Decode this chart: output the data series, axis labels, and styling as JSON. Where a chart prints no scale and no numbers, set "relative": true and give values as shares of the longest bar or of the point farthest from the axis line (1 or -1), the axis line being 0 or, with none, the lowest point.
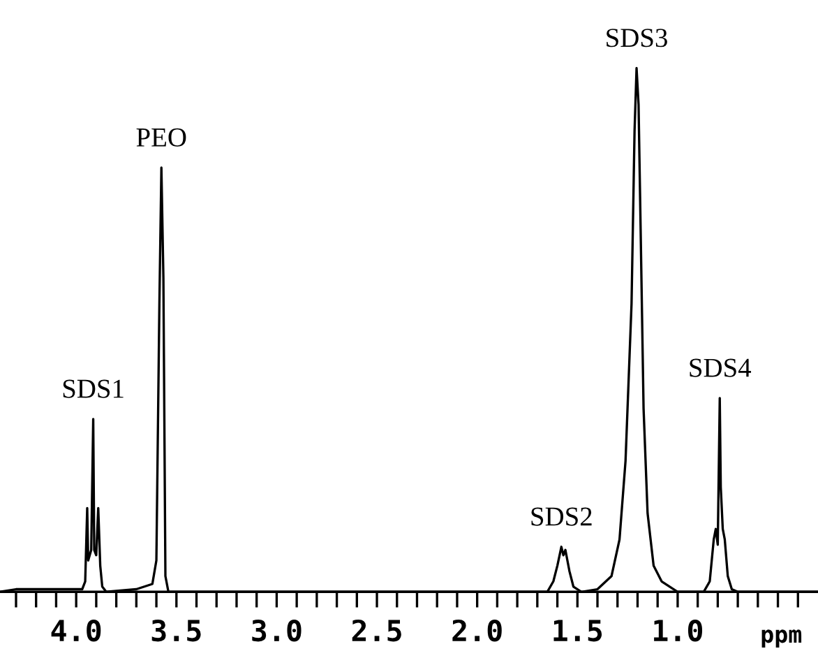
{
  "chart_data": {
    "type": "line",
    "relative": true,
    "xlabel": "ppm",
    "x": [
      4.38,
      4.3,
      3.97,
      3.955,
      3.945,
      3.94,
      3.925,
      3.915,
      3.91,
      3.9,
      3.89,
      3.88,
      3.87,
      3.85,
      3.7,
      3.62,
      3.6,
      3.585,
      3.575,
      3.565,
      3.555,
      3.54,
      2.0,
      1.65,
      1.62,
      1.6,
      1.58,
      1.57,
      1.56,
      1.54,
      1.52,
      1.48,
      1.4,
      1.33,
      1.29,
      1.26,
      1.23,
      1.215,
      1.205,
      1.195,
      1.185,
      1.17,
      1.15,
      1.12,
      1.08,
      1.0,
      0.87,
      0.84,
      0.82,
      0.81,
      0.8,
      0.79,
      0.785,
      0.775,
      0.765,
      0.75,
      0.73,
      0.7,
      0.3
    ],
    "series": [
      {
        "color": "#000000",
        "values": [
          0.0,
          0.005,
          0.005,
          0.02,
          0.16,
          0.06,
          0.08,
          0.33,
          0.08,
          0.07,
          0.16,
          0.05,
          0.01,
          0.0,
          0.005,
          0.015,
          0.06,
          0.55,
          0.81,
          0.6,
          0.03,
          0.0,
          0.0,
          0.0,
          0.02,
          0.05,
          0.086,
          0.07,
          0.08,
          0.04,
          0.01,
          0.0,
          0.005,
          0.03,
          0.1,
          0.25,
          0.55,
          0.88,
          1.0,
          0.93,
          0.7,
          0.35,
          0.15,
          0.05,
          0.02,
          0.0,
          0.0,
          0.02,
          0.1,
          0.12,
          0.09,
          0.37,
          0.2,
          0.12,
          0.1,
          0.03,
          0.005,
          0.0,
          0.0
        ]
      }
    ],
    "xlim": [
      4.38,
      0.3
    ],
    "xticks": [
      {
        "value": 4.3,
        "label": null
      },
      {
        "value": 4.2,
        "label": null
      },
      {
        "value": 4.1,
        "label": null
      },
      {
        "value": 4.0,
        "label": "4.0"
      },
      {
        "value": 3.9,
        "label": null
      },
      {
        "value": 3.8,
        "label": null
      },
      {
        "value": 3.7,
        "label": null
      },
      {
        "value": 3.6,
        "label": null
      },
      {
        "value": 3.5,
        "label": "3.5"
      },
      {
        "value": 3.4,
        "label": null
      },
      {
        "value": 3.3,
        "label": null
      },
      {
        "value": 3.2,
        "label": null
      },
      {
        "value": 3.1,
        "label": null
      },
      {
        "value": 3.0,
        "label": "3.0"
      },
      {
        "value": 2.9,
        "label": null
      },
      {
        "value": 2.8,
        "label": null
      },
      {
        "value": 2.7,
        "label": null
      },
      {
        "value": 2.6,
        "label": null
      },
      {
        "value": 2.5,
        "label": "2.5"
      },
      {
        "value": 2.4,
        "label": null
      },
      {
        "value": 2.3,
        "label": null
      },
      {
        "value": 2.2,
        "label": null
      },
      {
        "value": 2.1,
        "label": null
      },
      {
        "value": 2.0,
        "label": "2.0"
      },
      {
        "value": 1.9,
        "label": null
      },
      {
        "value": 1.8,
        "label": null
      },
      {
        "value": 1.7,
        "label": null
      },
      {
        "value": 1.6,
        "label": null
      },
      {
        "value": 1.5,
        "label": "1.5"
      },
      {
        "value": 1.4,
        "label": null
      },
      {
        "value": 1.3,
        "label": null
      },
      {
        "value": 1.2,
        "label": null
      },
      {
        "value": 1.1,
        "label": null
      },
      {
        "value": 1.0,
        "label": "1.0"
      },
      {
        "value": 0.9,
        "label": null
      },
      {
        "value": 0.8,
        "label": null
      },
      {
        "value": 0.7,
        "label": null
      },
      {
        "value": 0.6,
        "label": null
      },
      {
        "value": 0.5,
        "label": null
      },
      {
        "value": 0.4,
        "label": null
      }
    ],
    "annotations": [
      {
        "text": "SDS1",
        "x": 3.915,
        "y": 0.33
      },
      {
        "text": "PEO",
        "x": 3.575,
        "y": 0.81
      },
      {
        "text": "SDS2",
        "x": 1.58,
        "y": 0.086
      },
      {
        "text": "SDS3",
        "x": 1.205,
        "y": 1.0
      },
      {
        "text": "SDS4",
        "x": 0.79,
        "y": 0.37
      }
    ],
    "grid": false,
    "legend": false
  }
}
